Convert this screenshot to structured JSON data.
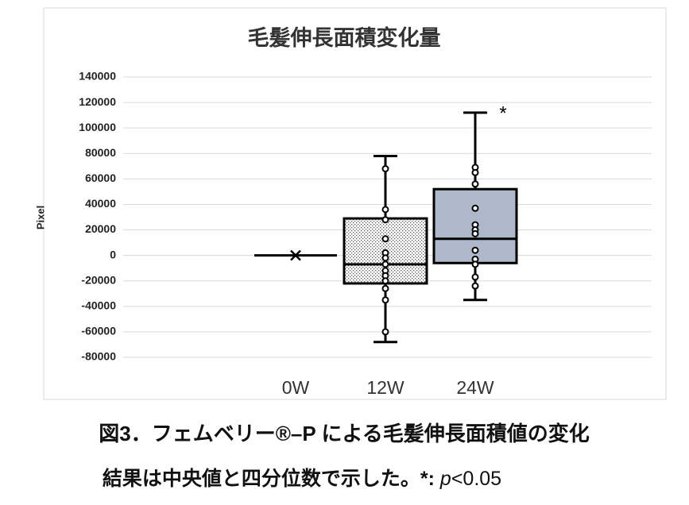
{
  "chart_data": {
    "type": "box",
    "title": "毛髪伸長面積変化量",
    "y_label": "Pixel",
    "categories": [
      "0W",
      "12W",
      "24W"
    ],
    "ylim": [
      -80000,
      140000
    ],
    "yticks": [
      -80000,
      -60000,
      -40000,
      -20000,
      0,
      20000,
      40000,
      60000,
      80000,
      100000,
      120000,
      140000
    ],
    "grid": true,
    "boxes": [
      {
        "min": 0,
        "q1": 0,
        "median": 0,
        "q3": 0,
        "max": 0,
        "mean": 0,
        "color": "#ffffff",
        "points": []
      },
      {
        "min": -68000,
        "q1": -22000,
        "median": -7000,
        "q3": 29000,
        "max": 78000,
        "color": "#ffffff",
        "pattern": "dots",
        "points": [
          68000,
          36000,
          28000,
          13000,
          2000,
          -2000,
          -7000,
          -12000,
          -16000,
          -20000,
          -26000,
          -35000,
          -60000
        ]
      },
      {
        "min": -35000,
        "q1": -6000,
        "median": 13000,
        "q3": 52000,
        "max": 112000,
        "color": "#adb9ca",
        "points": [
          69000,
          65000,
          56000,
          37000,
          24000,
          20000,
          17000,
          4000,
          -3000,
          -7000,
          -17000,
          -24000
        ]
      }
    ],
    "annotations": [
      {
        "category": 2,
        "text": "*"
      }
    ]
  },
  "caption": "図3．フェムベリー®–P による毛髪伸長面積値の変化",
  "note": [
    "結果は中央値と四分位数で示した。*: ",
    "p",
    "<0.05"
  ]
}
